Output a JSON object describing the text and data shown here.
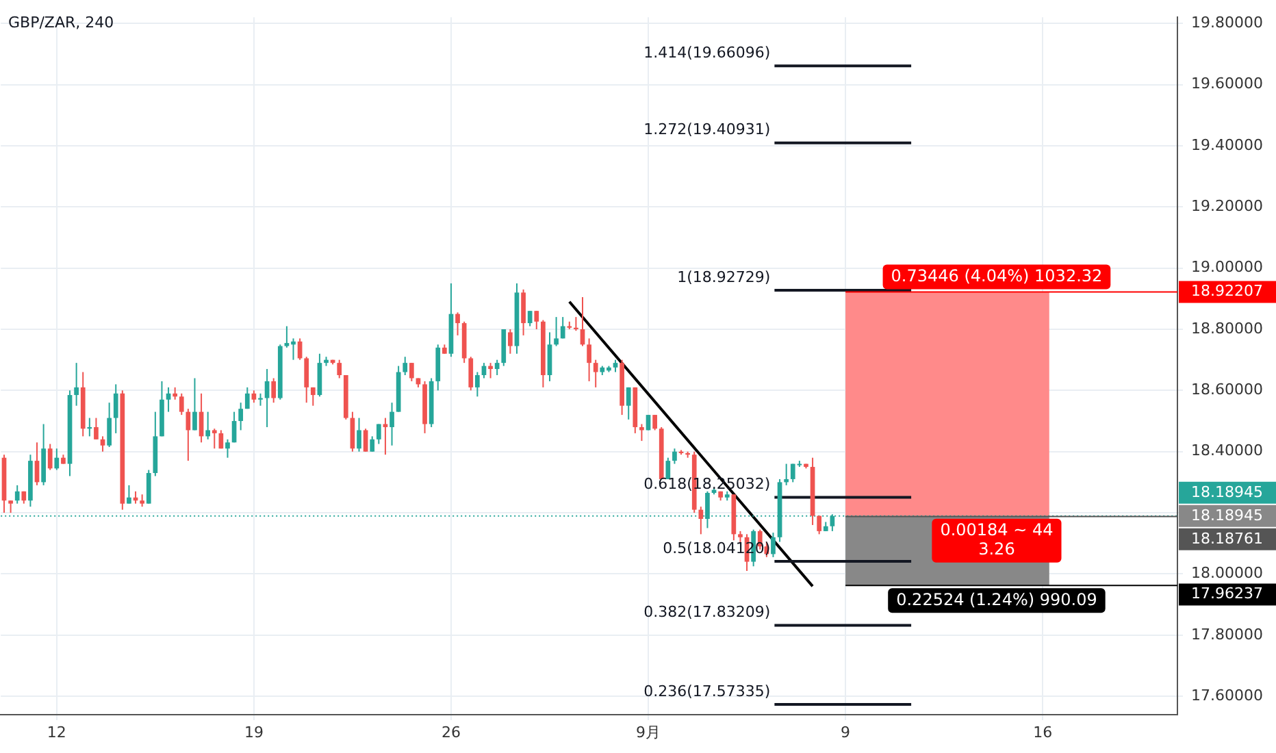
{
  "chart_data": {
    "type": "candlestick",
    "title": "GBP/ZAR, 240",
    "categories": [
      null,
      null,
      null,
      null,
      null,
      null,
      null,
      null,
      "12",
      null,
      null,
      null,
      null,
      null,
      null,
      null,
      null,
      null,
      null,
      null,
      null,
      null,
      null,
      null,
      null,
      null,
      null,
      null,
      null,
      null,
      null,
      null,
      null,
      null,
      null,
      null,
      null,
      null,
      "19",
      null,
      null,
      null,
      null,
      null,
      null,
      null,
      null,
      null,
      null,
      null,
      null,
      null,
      null,
      null,
      null,
      null,
      null,
      null,
      null,
      null,
      null,
      null,
      null,
      null,
      null,
      null,
      null,
      null,
      "26",
      null,
      null,
      null,
      null,
      null,
      null,
      null,
      null,
      null,
      null,
      null,
      null,
      null,
      null,
      null,
      null,
      null,
      null,
      null,
      null,
      null,
      null,
      null,
      null,
      null,
      null,
      null,
      null,
      null,
      "9月",
      null,
      null,
      null,
      null,
      null,
      null,
      null,
      null,
      null,
      null,
      null,
      null,
      null,
      null,
      null,
      null,
      null,
      null,
      null,
      null,
      null,
      null,
      null,
      null,
      null,
      null,
      null,
      null,
      null,
      "9",
      null,
      null,
      null,
      null,
      null,
      null,
      null,
      null,
      null,
      null,
      null,
      null,
      null,
      null,
      null,
      null,
      null,
      null,
      null,
      null,
      null,
      null,
      null,
      null,
      null,
      null,
      null,
      null,
      null,
      "16",
      null,
      null,
      null,
      null,
      null,
      null,
      null,
      null,
      null,
      null,
      null,
      null,
      null,
      null,
      null,
      null,
      null,
      null,
      null,
      null
    ],
    "ohlc": [
      [
        18.38,
        18.39,
        18.2,
        18.24
      ],
      [
        18.24,
        18.24,
        18.2,
        18.23
      ],
      [
        18.24,
        18.29,
        18.23,
        18.27
      ],
      [
        18.27,
        18.27,
        18.23,
        18.24
      ],
      [
        18.24,
        18.39,
        18.22,
        18.37
      ],
      [
        18.37,
        18.43,
        18.29,
        18.3
      ],
      [
        18.3,
        18.49,
        18.29,
        18.41
      ],
      [
        18.41,
        18.425,
        18.34,
        18.345
      ],
      [
        18.345,
        18.41,
        18.34,
        18.38
      ],
      [
        18.38,
        18.39,
        18.36,
        18.36
      ],
      [
        18.36,
        18.6,
        18.32,
        18.585
      ],
      [
        18.585,
        18.69,
        18.55,
        18.61
      ],
      [
        18.61,
        18.66,
        18.45,
        18.475
      ],
      [
        18.475,
        18.51,
        18.45,
        18.48
      ],
      [
        18.48,
        18.51,
        18.44,
        18.44
      ],
      [
        18.44,
        18.45,
        18.4,
        18.42
      ],
      [
        18.42,
        18.56,
        18.415,
        18.51
      ],
      [
        18.51,
        18.62,
        18.46,
        18.59
      ],
      [
        18.59,
        18.6,
        18.21,
        18.23
      ],
      [
        18.23,
        18.29,
        18.23,
        18.25
      ],
      [
        18.25,
        18.27,
        18.23,
        18.24
      ],
      [
        18.24,
        18.26,
        18.22,
        18.23
      ],
      [
        18.23,
        18.34,
        18.23,
        18.33
      ],
      [
        18.33,
        18.53,
        18.32,
        18.45
      ],
      [
        18.45,
        18.63,
        18.45,
        18.57
      ],
      [
        18.57,
        18.61,
        18.53,
        18.59
      ],
      [
        18.59,
        18.61,
        18.57,
        18.58
      ],
      [
        18.58,
        18.59,
        18.52,
        18.53
      ],
      [
        18.53,
        18.54,
        18.37,
        18.47
      ],
      [
        18.47,
        18.64,
        18.47,
        18.53
      ],
      [
        18.53,
        18.59,
        18.43,
        18.45
      ],
      [
        18.45,
        18.53,
        18.44,
        18.47
      ],
      [
        18.47,
        18.475,
        18.41,
        18.46
      ],
      [
        18.46,
        18.47,
        18.41,
        18.41
      ],
      [
        18.41,
        18.44,
        18.38,
        18.43
      ],
      [
        18.43,
        18.53,
        18.43,
        18.5
      ],
      [
        18.5,
        18.56,
        18.47,
        18.54
      ],
      [
        18.54,
        18.61,
        18.54,
        18.59
      ],
      [
        18.59,
        18.6,
        18.56,
        18.57
      ],
      [
        18.57,
        18.59,
        18.55,
        18.575
      ],
      [
        18.575,
        18.67,
        18.48,
        18.63
      ],
      [
        18.63,
        18.64,
        18.56,
        18.575
      ],
      [
        18.575,
        18.75,
        18.57,
        18.745
      ],
      [
        18.745,
        18.81,
        18.74,
        18.755
      ],
      [
        18.75,
        18.77,
        18.7,
        18.76
      ],
      [
        18.76,
        18.77,
        18.7,
        18.705
      ],
      [
        18.705,
        18.71,
        18.56,
        18.61
      ],
      [
        18.61,
        18.61,
        18.55,
        18.585
      ],
      [
        18.585,
        18.72,
        18.58,
        18.69
      ],
      [
        18.69,
        18.71,
        18.68,
        18.7
      ],
      [
        18.7,
        18.7,
        18.685,
        18.69
      ],
      [
        18.69,
        18.7,
        18.64,
        18.65
      ],
      [
        18.65,
        18.65,
        18.505,
        18.51
      ],
      [
        18.51,
        18.53,
        18.4,
        18.41
      ],
      [
        18.41,
        18.51,
        18.4,
        18.47
      ],
      [
        18.47,
        18.475,
        18.4,
        18.4
      ],
      [
        18.4,
        18.45,
        18.4,
        18.44
      ],
      [
        18.44,
        18.49,
        18.425,
        18.49
      ],
      [
        18.49,
        18.51,
        18.39,
        18.48
      ],
      [
        18.48,
        18.56,
        18.42,
        18.53
      ],
      [
        18.53,
        18.68,
        18.53,
        18.66
      ],
      [
        18.66,
        18.71,
        18.65,
        18.69
      ],
      [
        18.69,
        18.69,
        18.63,
        18.64
      ],
      [
        18.64,
        18.64,
        18.61,
        18.62
      ],
      [
        18.62,
        18.63,
        18.46,
        18.49
      ],
      [
        18.49,
        18.64,
        18.48,
        18.63
      ],
      [
        18.63,
        18.75,
        18.6,
        18.74
      ],
      [
        18.74,
        18.75,
        18.72,
        18.72
      ],
      [
        18.72,
        18.95,
        18.71,
        18.85
      ],
      [
        18.85,
        18.855,
        18.78,
        18.82
      ],
      [
        18.82,
        18.825,
        18.69,
        18.705
      ],
      [
        18.705,
        18.71,
        18.6,
        18.61
      ],
      [
        18.61,
        18.66,
        18.58,
        18.65
      ],
      [
        18.65,
        18.69,
        18.64,
        18.68
      ],
      [
        18.68,
        18.69,
        18.64,
        18.67
      ],
      [
        18.67,
        18.7,
        18.65,
        18.69
      ],
      [
        18.69,
        18.8,
        18.68,
        18.8
      ],
      [
        18.79,
        18.8,
        18.72,
        18.745
      ],
      [
        18.745,
        18.95,
        18.72,
        18.92
      ],
      [
        18.92,
        18.93,
        18.78,
        18.82
      ],
      [
        18.82,
        18.86,
        18.81,
        18.86
      ],
      [
        18.86,
        18.86,
        18.8,
        18.825
      ],
      [
        18.825,
        18.83,
        18.61,
        18.65
      ],
      [
        18.65,
        18.79,
        18.63,
        18.75
      ],
      [
        18.75,
        18.84,
        18.745,
        18.77
      ],
      [
        18.77,
        18.84,
        18.77,
        18.81
      ],
      [
        18.81,
        18.825,
        18.8,
        18.805
      ],
      [
        18.805,
        18.84,
        18.795,
        18.8
      ],
      [
        18.8,
        18.905,
        18.745,
        18.75
      ],
      [
        18.75,
        18.77,
        18.63,
        18.69
      ],
      [
        18.69,
        18.7,
        18.61,
        18.66
      ],
      [
        18.66,
        18.68,
        18.65,
        18.675
      ],
      [
        18.665,
        18.68,
        18.66,
        18.675
      ],
      [
        18.675,
        18.7,
        18.66,
        18.69
      ],
      [
        18.69,
        18.7,
        18.52,
        18.55
      ],
      [
        18.55,
        18.61,
        18.505,
        18.61
      ],
      [
        18.61,
        18.61,
        18.46,
        18.48
      ],
      [
        18.48,
        18.49,
        18.435,
        18.47
      ],
      [
        18.47,
        18.52,
        18.47,
        18.52
      ],
      [
        18.52,
        18.52,
        18.47,
        18.475
      ],
      [
        18.475,
        18.48,
        18.31,
        18.31
      ],
      [
        18.31,
        18.38,
        18.31,
        18.37
      ],
      [
        18.37,
        18.41,
        18.36,
        18.4
      ],
      [
        18.4,
        18.405,
        18.39,
        18.395
      ],
      [
        18.395,
        18.4,
        18.38,
        18.39
      ],
      [
        18.39,
        18.4,
        18.2,
        18.21
      ],
      [
        18.21,
        18.22,
        18.13,
        18.18
      ],
      [
        18.18,
        18.27,
        18.15,
        18.265
      ],
      [
        18.265,
        18.28,
        18.26,
        18.275
      ],
      [
        18.27,
        18.27,
        18.24,
        18.25
      ],
      [
        18.25,
        18.27,
        18.24,
        18.26
      ],
      [
        18.26,
        18.26,
        18.11,
        18.13
      ],
      [
        18.13,
        18.14,
        18.1,
        18.12
      ],
      [
        18.12,
        18.13,
        18.01,
        18.04
      ],
      [
        18.04,
        18.145,
        18.025,
        18.14
      ],
      [
        18.14,
        18.145,
        18.08,
        18.09
      ],
      [
        18.09,
        18.105,
        18.055,
        18.065
      ],
      [
        18.065,
        18.135,
        18.055,
        18.12
      ],
      [
        18.12,
        18.31,
        18.105,
        18.3
      ],
      [
        18.3,
        18.36,
        18.29,
        18.31
      ],
      [
        18.31,
        18.36,
        18.3,
        18.36
      ],
      [
        18.36,
        18.37,
        18.35,
        18.36
      ],
      [
        18.36,
        18.36,
        18.345,
        18.35
      ],
      [
        18.35,
        18.38,
        18.16,
        18.19
      ],
      [
        18.19,
        18.19,
        18.13,
        18.14
      ],
      [
        18.14,
        18.17,
        18.14,
        18.156
      ],
      [
        18.156,
        18.195,
        18.14,
        18.18945
      ],
      null,
      null,
      null,
      null,
      null,
      null,
      null,
      null,
      null,
      null,
      null,
      null,
      null,
      null,
      null,
      null,
      null,
      null,
      null,
      null,
      null,
      null,
      null,
      null,
      null,
      null,
      null,
      null,
      null,
      null,
      null,
      null,
      null,
      null,
      null,
      null,
      null,
      null,
      null,
      null,
      null,
      null,
      null,
      null,
      null,
      null,
      null,
      null,
      null,
      null,
      null,
      null
    ],
    "series": [
      {
        "type": "line",
        "color": "#000000",
        "values": [
          null,
          null,
          null,
          null,
          null,
          null,
          null,
          null,
          null,
          null,
          null,
          null,
          null,
          null,
          null,
          null,
          null,
          null,
          null,
          null,
          null,
          null,
          null,
          null,
          null,
          null,
          null,
          null,
          null,
          null,
          null,
          null,
          null,
          null,
          null,
          null,
          null,
          null,
          null,
          null,
          null,
          null,
          null,
          null,
          null,
          null,
          null,
          null,
          null,
          null,
          null,
          null,
          null,
          null,
          null,
          null,
          null,
          null,
          null,
          null,
          null,
          null,
          null,
          null,
          null,
          null,
          null,
          null,
          null,
          null,
          null,
          null,
          null,
          null,
          null,
          null,
          null,
          null,
          null,
          null,
          null,
          null,
          null,
          null,
          null,
          null,
          18.89,
          null,
          null,
          null,
          null,
          null,
          null,
          null,
          null,
          null,
          null,
          null,
          null,
          null,
          null,
          null,
          null,
          null,
          null,
          null,
          null,
          null,
          null,
          null,
          null,
          null,
          null,
          null,
          null,
          null,
          null,
          null,
          null,
          null,
          null,
          null,
          null,
          17.96,
          null,
          null,
          null,
          null,
          null,
          null,
          null,
          null,
          null,
          null,
          null,
          null,
          null,
          null,
          null,
          null,
          null,
          null,
          null,
          null,
          null,
          null,
          null,
          null,
          null,
          null,
          null,
          null,
          null,
          null,
          null,
          null,
          null,
          null,
          null,
          null,
          null,
          null,
          null,
          null,
          null,
          null,
          null,
          null,
          null,
          null,
          null,
          null,
          null,
          null,
          null,
          null,
          null,
          null,
          null
        ]
      }
    ],
    "ylim": [
      17.54,
      19.82
    ],
    "yticks": [
      {
        "value": 17.6,
        "label": "17.60000"
      },
      {
        "value": 17.8,
        "label": "17.80000"
      },
      {
        "value": 18.0,
        "label": "18.00000"
      },
      {
        "value": 18.2,
        "label": null
      },
      {
        "value": 18.4,
        "label": "18.40000"
      },
      {
        "value": 18.6,
        "label": "18.60000"
      },
      {
        "value": 18.8,
        "label": "18.80000"
      },
      {
        "value": 19.0,
        "label": "19.00000"
      },
      {
        "value": 19.2,
        "label": "19.20000"
      },
      {
        "value": 19.4,
        "label": "19.40000"
      },
      {
        "value": 19.6,
        "label": "19.60000"
      },
      {
        "value": 19.8,
        "label": "19.80000"
      }
    ],
    "grid": true,
    "legend": false,
    "bands": [
      {
        "axis": "y",
        "from": 18.18945,
        "to": 18.92207,
        "color": "#ff8a8a"
      },
      {
        "axis": "y",
        "from": 17.96237,
        "to": 18.18945,
        "color": "#888888"
      }
    ],
    "ref_lines": [
      {
        "axis": "y",
        "value": 19.66096,
        "label": "1.414(19.66096)",
        "line_style": "solid"
      },
      {
        "axis": "y",
        "value": 19.40931,
        "label": "1.272(19.40931)",
        "line_style": "solid"
      },
      {
        "axis": "y",
        "value": 18.92729,
        "label": "1(18.92729)",
        "line_style": "solid"
      },
      {
        "axis": "y",
        "value": 18.25032,
        "label": "0.618(18.25032)",
        "line_style": "solid"
      },
      {
        "axis": "y",
        "value": 18.0412,
        "label": "0.5(18.04120)",
        "line_style": "solid"
      },
      {
        "axis": "y",
        "value": 17.83209,
        "label": "0.382(17.83209)",
        "line_style": "solid"
      },
      {
        "axis": "y",
        "value": 17.57335,
        "label": "0.236(17.57335)",
        "line_style": "solid"
      },
      {
        "axis": "y",
        "value": 18.92207,
        "label": "18.92207",
        "color": "#ff0000"
      },
      {
        "axis": "y",
        "value": 18.18945,
        "label": "18.18945",
        "color": "#26a69a",
        "line_style": "dotted"
      },
      {
        "axis": "y",
        "value": 18.18761,
        "label": "18.18761",
        "color": "#555555"
      },
      {
        "axis": "y",
        "value": 17.96237,
        "label": "17.96237",
        "color": "#000000"
      }
    ],
    "annotations": [
      "0.73446 (4.04%) 1032.32",
      "0.00184 ~ 44\n3.26",
      "0.22524 (1.24%) 990.09",
      "18.18945"
    ]
  }
}
